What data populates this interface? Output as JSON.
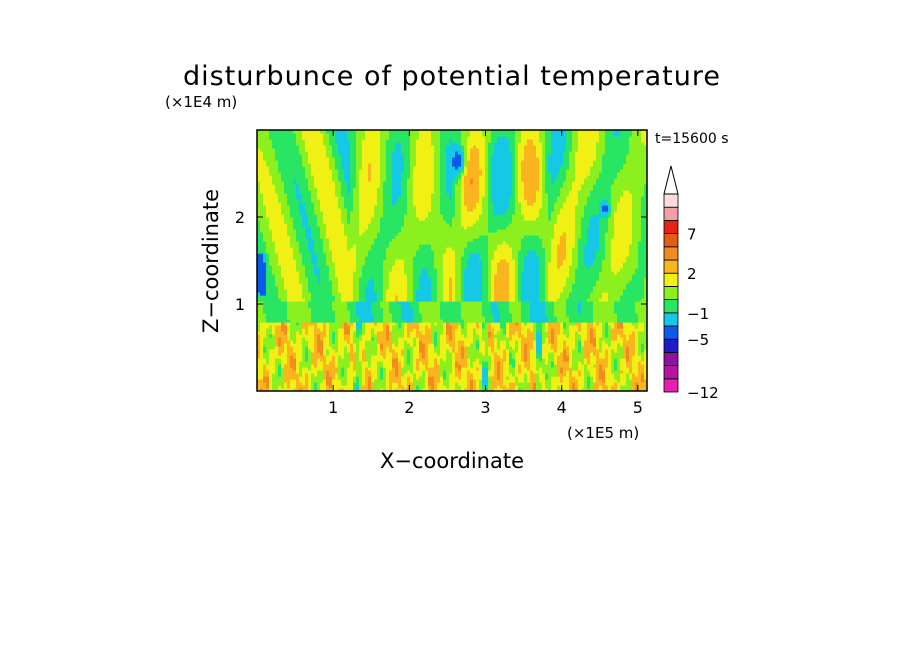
{
  "chart_data": {
    "type": "heatmap",
    "title": "disturbunce of potential temperature",
    "xlabel": "X−coordinate",
    "ylabel": "Z−coordinate",
    "x_unit": "(×1E5 m)",
    "y_unit": "(×1E4 m)",
    "time_label": "t=15600 s",
    "xlim": [
      0,
      5.12
    ],
    "ylim": [
      0,
      3.0
    ],
    "xticks": [
      1,
      2,
      3,
      4,
      5
    ],
    "xtick_labels": [
      "1",
      "2",
      "3",
      "4",
      "5"
    ],
    "yticks": [
      1,
      2
    ],
    "ytick_labels": [
      "1",
      "2"
    ],
    "colorbar": {
      "levels": [
        -12,
        -10,
        -8,
        -6,
        -5,
        -3,
        -1,
        0,
        1,
        2,
        3,
        5,
        7,
        9,
        11
      ],
      "colors": [
        "#e61eb4",
        "#b414a0",
        "#8c14a0",
        "#1e1ec8",
        "#0a5aeb",
        "#14c8e6",
        "#28e664",
        "#8cf01e",
        "#f0f014",
        "#fab41e",
        "#f08c1e",
        "#e65a14",
        "#e62314",
        "#f0a0a0",
        "#fadcdc"
      ],
      "tick_values": [
        7,
        2,
        -1,
        -5,
        -12
      ],
      "tick_labels": [
        "7",
        "2",
        "−1",
        "−5",
        "−12"
      ],
      "extend": "max"
    },
    "field_description_value_range": [
      -6,
      3
    ]
  }
}
